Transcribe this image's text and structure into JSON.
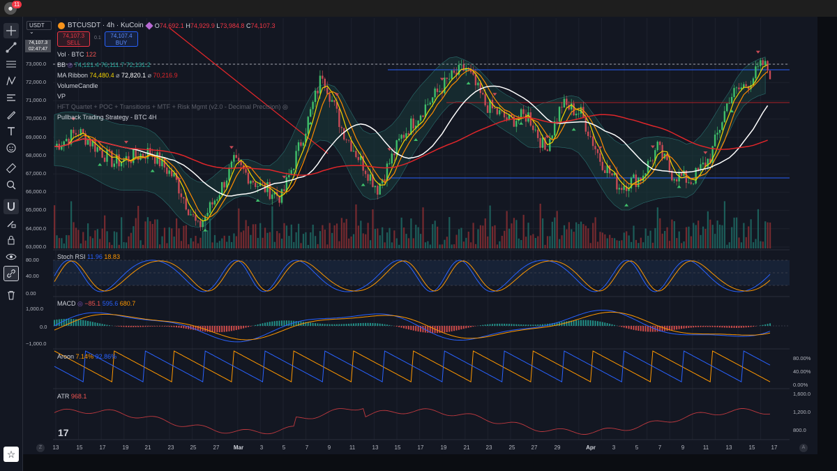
{
  "app": {
    "notification_count": "11",
    "currency_selector": "USDT",
    "crosshair_price": "74,107.3",
    "crosshair_countdown": "02:47:47"
  },
  "symbol": {
    "name": "BTCUSDT · 4h · KuCoin",
    "open_label": "O",
    "open": "74,692.1",
    "high_label": "H",
    "high": "74,929.9",
    "low_label": "L",
    "low": "73,984.8",
    "close_label": "C",
    "close": "74,107.3"
  },
  "trade": {
    "sell_price": "74,107.3",
    "sell_label": "SELL",
    "spread": "0.1",
    "buy_price": "74,107.4",
    "buy_label": "BUY"
  },
  "indicators": {
    "vol": {
      "label": "Vol · BTC",
      "value": "122"
    },
    "bb": {
      "label": "BB",
      "v1": "74,121.4",
      "v2": "76,111.7",
      "v3": "72,131.2"
    },
    "ma_ribbon": {
      "label": "MA Ribbon",
      "v1": "74,480.4",
      "v2": "72,820.1",
      "v3": "70,216.9",
      "sep": "⌀"
    },
    "volume_candle": "VolumeCandle",
    "vp": "VP",
    "hft": "HFT Quartet + POC + Transitions + MTF + Risk Mgmt (v2.0 - Decimal Precision)",
    "pullback": "Pullback Trading Strategy - BTC 4H"
  },
  "price_axis": [
    "73,000.0",
    "72,000.0",
    "71,000.0",
    "70,000.0",
    "69,000.0",
    "68,000.0",
    "67,000.0",
    "66,000.0",
    "65,000.0",
    "64,000.0",
    "63,000.0"
  ],
  "stoch_rsi": {
    "label": "Stoch RSI",
    "k": "11.96",
    "d": "18.83",
    "axis": [
      "80.00",
      "40.00",
      "0.00"
    ]
  },
  "macd": {
    "label": "MACD",
    "hist": "−85.1",
    "macd": "595.6",
    "signal": "680.7",
    "axis": [
      "1,000.0",
      "0.0",
      "−1,000.0"
    ]
  },
  "aroon": {
    "label": "Aroon",
    "up": "7.14%",
    "down": "92.86%",
    "axis": [
      "80.00%",
      "40.00%",
      "0.00%"
    ]
  },
  "atr": {
    "label": "ATR",
    "value": "968.1",
    "axis": [
      "1,600.0",
      "1,200.0",
      "800.0"
    ]
  },
  "dates": [
    "13",
    "15",
    "17",
    "19",
    "21",
    "23",
    "25",
    "27",
    "Mar",
    "3",
    "5",
    "7",
    "9",
    "11",
    "13",
    "15",
    "17",
    "19",
    "21",
    "23",
    "25",
    "27",
    "29",
    "Apr",
    "3",
    "5",
    "7",
    "9",
    "11",
    "13",
    "15",
    "17"
  ],
  "colors": {
    "bg": "#131722",
    "up": "#26a69a",
    "down": "#ef5350",
    "bb_fill": "#1e4a4a",
    "ma_white": "#ffffff",
    "ma_red": "#e0262a",
    "ema_yellow": "#f5d400",
    "ema_orange": "#ff8c00",
    "macd_blue": "#2962ff",
    "macd_orange": "#ff9800",
    "level_blue": "#2962ff"
  },
  "icons": [
    "crosshair-icon",
    "trendline-icon",
    "fib-icon",
    "pattern-icon",
    "measure-icon",
    "brush-icon",
    "text-icon",
    "emoji-icon",
    "ruler-icon",
    "zoom-icon",
    "magnet-icon",
    "lock-draw-icon",
    "lock-icon",
    "eye-icon",
    "link-icon",
    "trash-icon",
    "star-icon"
  ]
}
